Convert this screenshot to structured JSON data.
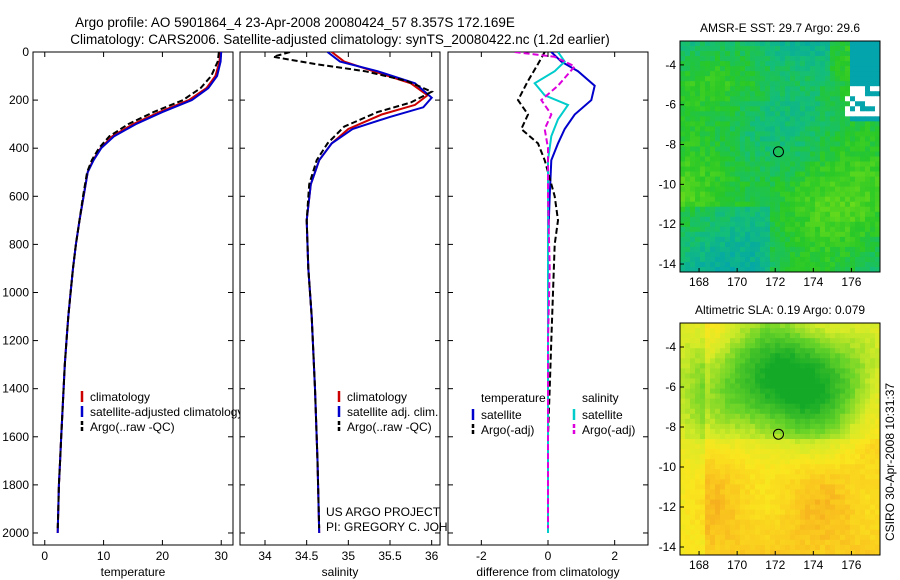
{
  "title_line1": "Argo profile: AO 5901864_4 23-Apr-2008 20080424_57 8.357S 172.169E",
  "title_line2": "Climatology: CARS2006. Satellite-adjusted climatology: synTS_20080422.nc (1.2d earlier)",
  "side_label": "CSIRO 30-Apr-2008 10:31:37",
  "chart_data": [
    {
      "type": "line",
      "id": "temperature",
      "xlabel": "temperature",
      "xlim": [
        -2,
        32
      ],
      "ylim": [
        0,
        2050
      ],
      "xticks": [
        0,
        10,
        20,
        30
      ],
      "yticks": [
        0,
        200,
        400,
        600,
        800,
        1000,
        1200,
        1400,
        1600,
        1800,
        2000
      ],
      "legend": [
        "climatology",
        "satellite-adjusted climatology",
        "Argo(..raw -QC)"
      ],
      "series": [
        {
          "name": "climatology",
          "color": "#cc0000",
          "dash": "",
          "points": [
            [
              29.8,
              0
            ],
            [
              29.7,
              40
            ],
            [
              29.0,
              100
            ],
            [
              27.5,
              150
            ],
            [
              24.5,
              200
            ],
            [
              19.5,
              250
            ],
            [
              15.0,
              300
            ],
            [
              11.5,
              350
            ],
            [
              9.5,
              400
            ],
            [
              8.2,
              450
            ],
            [
              7.3,
              500
            ],
            [
              6.6,
              600
            ],
            [
              5.9,
              700
            ],
            [
              5.3,
              800
            ],
            [
              4.8,
              900
            ],
            [
              4.4,
              1000
            ],
            [
              4.0,
              1100
            ],
            [
              3.7,
              1200
            ],
            [
              3.4,
              1300
            ],
            [
              3.2,
              1400
            ],
            [
              3.0,
              1500
            ],
            [
              2.8,
              1600
            ],
            [
              2.6,
              1700
            ],
            [
              2.4,
              1800
            ],
            [
              2.3,
              1900
            ],
            [
              2.2,
              2000
            ]
          ]
        },
        {
          "name": "satellite-adjusted climatology",
          "color": "#0000cc",
          "dash": "",
          "points": [
            [
              30.0,
              0
            ],
            [
              29.9,
              40
            ],
            [
              29.3,
              100
            ],
            [
              27.8,
              150
            ],
            [
              25.0,
              200
            ],
            [
              20.0,
              250
            ],
            [
              15.5,
              300
            ],
            [
              11.8,
              350
            ],
            [
              9.6,
              400
            ],
            [
              8.3,
              450
            ],
            [
              7.3,
              500
            ],
            [
              6.6,
              600
            ],
            [
              5.9,
              700
            ],
            [
              5.3,
              800
            ],
            [
              4.8,
              900
            ],
            [
              4.4,
              1000
            ],
            [
              4.0,
              1100
            ],
            [
              3.7,
              1200
            ],
            [
              3.4,
              1300
            ],
            [
              3.2,
              1400
            ],
            [
              3.0,
              1500
            ],
            [
              2.8,
              1600
            ],
            [
              2.6,
              1700
            ],
            [
              2.4,
              1800
            ],
            [
              2.3,
              1900
            ],
            [
              2.2,
              2000
            ]
          ]
        },
        {
          "name": "Argo(..raw -QC)",
          "color": "#000000",
          "dash": "6,3",
          "points": [
            [
              29.6,
              0
            ],
            [
              29.4,
              40
            ],
            [
              28.3,
              100
            ],
            [
              26.5,
              150
            ],
            [
              23.5,
              200
            ],
            [
              18.5,
              250
            ],
            [
              14.2,
              300
            ],
            [
              11.0,
              350
            ],
            [
              9.2,
              400
            ],
            [
              8.0,
              450
            ],
            [
              7.2,
              500
            ],
            [
              6.5,
              600
            ],
            [
              5.9,
              700
            ],
            [
              5.3,
              800
            ],
            [
              4.8,
              900
            ],
            [
              4.4,
              1000
            ],
            [
              4.0,
              1100
            ],
            [
              3.7,
              1200
            ],
            [
              3.4,
              1300
            ],
            [
              3.2,
              1400
            ],
            [
              3.0,
              1500
            ],
            [
              2.8,
              1600
            ],
            [
              2.6,
              1700
            ],
            [
              2.4,
              1800
            ],
            [
              2.3,
              1900
            ],
            [
              2.2,
              1980
            ]
          ]
        }
      ]
    },
    {
      "type": "line",
      "id": "salinity",
      "xlabel": "salinity",
      "xlim": [
        33.7,
        36.1
      ],
      "ylim": [
        0,
        2050
      ],
      "xticks": [
        34,
        34.5,
        35,
        35.5,
        36
      ],
      "xticklabels": [
        "34",
        "34.5",
        "35",
        "35.5",
        "36"
      ],
      "legend": [
        "climatology",
        "satellite adj. clim.",
        "Argo(..raw -QC)"
      ],
      "credit": [
        "US ARGO PROJECT",
        "PI: GREGORY C. JOHNSON"
      ],
      "series": [
        {
          "name": "climatology",
          "color": "#cc0000",
          "dash": "",
          "points": [
            [
              34.8,
              0
            ],
            [
              34.95,
              40
            ],
            [
              35.3,
              80
            ],
            [
              35.75,
              130
            ],
            [
              35.95,
              180
            ],
            [
              35.8,
              220
            ],
            [
              35.4,
              260
            ],
            [
              35.0,
              320
            ],
            [
              34.8,
              380
            ],
            [
              34.65,
              450
            ],
            [
              34.55,
              550
            ],
            [
              34.5,
              700
            ],
            [
              34.52,
              900
            ],
            [
              34.56,
              1100
            ],
            [
              34.6,
              1400
            ],
            [
              34.63,
              1700
            ],
            [
              34.65,
              2000
            ]
          ]
        },
        {
          "name": "satellite adj. clim.",
          "color": "#0000cc",
          "dash": "",
          "points": [
            [
              34.75,
              0
            ],
            [
              34.9,
              40
            ],
            [
              35.35,
              80
            ],
            [
              35.8,
              130
            ],
            [
              36.0,
              190
            ],
            [
              35.9,
              230
            ],
            [
              35.5,
              270
            ],
            [
              35.05,
              320
            ],
            [
              34.8,
              380
            ],
            [
              34.65,
              450
            ],
            [
              34.55,
              550
            ],
            [
              34.5,
              700
            ],
            [
              34.52,
              900
            ],
            [
              34.56,
              1100
            ],
            [
              34.6,
              1400
            ],
            [
              34.63,
              1700
            ],
            [
              34.65,
              2000
            ]
          ]
        },
        {
          "name": "Argo(..raw -QC)",
          "color": "#000000",
          "dash": "6,3",
          "points": [
            [
              34.3,
              0
            ],
            [
              34.1,
              20
            ],
            [
              34.6,
              50
            ],
            [
              35.2,
              80
            ],
            [
              35.7,
              120
            ],
            [
              36.0,
              165
            ],
            [
              35.75,
              210
            ],
            [
              35.35,
              250
            ],
            [
              34.95,
              310
            ],
            [
              34.75,
              380
            ],
            [
              34.62,
              450
            ],
            [
              34.53,
              550
            ],
            [
              34.5,
              700
            ],
            [
              34.52,
              900
            ],
            [
              34.56,
              1100
            ],
            [
              34.6,
              1400
            ],
            [
              34.63,
              1700
            ],
            [
              34.65,
              1980
            ]
          ]
        }
      ]
    },
    {
      "type": "line",
      "id": "difference",
      "xlabel": "difference from climatology",
      "xlim": [
        -3,
        3
      ],
      "ylim": [
        0,
        2050
      ],
      "xticks": [
        -2,
        0,
        2
      ],
      "legend_titles": [
        "temperature",
        "salinity"
      ],
      "legend": [
        "satellite",
        "Argo(-adj)",
        "satellite",
        "Argo(-adj)"
      ],
      "series": [
        {
          "name": "temperature satellite",
          "color": "#0000cc",
          "dash": "",
          "points": [
            [
              0.1,
              0
            ],
            [
              0.4,
              40
            ],
            [
              0.9,
              80
            ],
            [
              1.4,
              140
            ],
            [
              1.3,
              200
            ],
            [
              0.8,
              260
            ],
            [
              0.5,
              320
            ],
            [
              0.3,
              380
            ],
            [
              0.1,
              450
            ],
            [
              0.05,
              600
            ],
            [
              0,
              800
            ],
            [
              0,
              1200
            ],
            [
              0,
              2000
            ]
          ]
        },
        {
          "name": "temperature Argo(-adj)",
          "color": "#000000",
          "dash": "6,3",
          "points": [
            [
              -0.1,
              0
            ],
            [
              -0.3,
              50
            ],
            [
              -0.6,
              120
            ],
            [
              -0.9,
              200
            ],
            [
              -0.6,
              260
            ],
            [
              -0.8,
              320
            ],
            [
              -0.3,
              380
            ],
            [
              -0.1,
              450
            ],
            [
              0.2,
              600
            ],
            [
              0.3,
              700
            ],
            [
              0.2,
              800
            ],
            [
              0.15,
              1000
            ],
            [
              0.1,
              1200
            ],
            [
              0.05,
              1400
            ],
            [
              0,
              1600
            ],
            [
              0,
              1980
            ]
          ]
        },
        {
          "name": "salinity satellite",
          "color": "#00cccc",
          "dash": "",
          "points": [
            [
              0.3,
              0
            ],
            [
              0.5,
              40
            ],
            [
              0.2,
              80
            ],
            [
              -0.4,
              130
            ],
            [
              -0.1,
              180
            ],
            [
              0.6,
              220
            ],
            [
              0.3,
              280
            ],
            [
              0.1,
              350
            ],
            [
              0,
              450
            ],
            [
              0,
              2000
            ]
          ]
        },
        {
          "name": "salinity Argo(-adj)",
          "color": "#dd00dd",
          "dash": "6,3",
          "points": [
            [
              -1.0,
              0
            ],
            [
              0.2,
              20
            ],
            [
              0.8,
              60
            ],
            [
              0.3,
              140
            ],
            [
              -0.2,
              200
            ],
            [
              0.1,
              260
            ],
            [
              -0.1,
              320
            ],
            [
              0,
              400
            ],
            [
              0,
              600
            ],
            [
              0.05,
              900
            ],
            [
              0,
              1200
            ],
            [
              0,
              1980
            ]
          ]
        }
      ]
    },
    {
      "type": "heatmap",
      "id": "sst_map",
      "title": "AMSR-E SST: 29.7 Argo: 29.6",
      "xlim": [
        167,
        177.5
      ],
      "ylim": [
        -14.4,
        -2.8
      ],
      "xticks": [
        168,
        170,
        172,
        174,
        176
      ],
      "yticks": [
        -4,
        -6,
        -8,
        -10,
        -12,
        -14
      ],
      "marker": [
        172.17,
        -8.36
      ]
    },
    {
      "type": "heatmap",
      "id": "sla_map",
      "title": "Altimetric SLA: 0.19 Argo: 0.079",
      "xlim": [
        167,
        177.5
      ],
      "ylim": [
        -14.4,
        -2.8
      ],
      "xticks": [
        168,
        170,
        172,
        174,
        176
      ],
      "yticks": [
        -4,
        -6,
        -8,
        -10,
        -12,
        -14
      ],
      "marker": [
        172.17,
        -8.36
      ]
    }
  ]
}
